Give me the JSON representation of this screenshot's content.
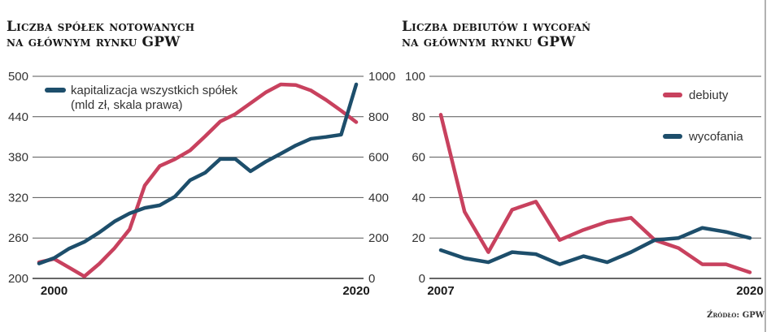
{
  "colors": {
    "red": "#c8415e",
    "blue": "#1d4e6b",
    "grid": "#555555"
  },
  "chart_data": [
    {
      "type": "line",
      "title_line1": "Liczba spółek notowanych",
      "title_line2": "na głównym rynku GPW",
      "x": [
        1999,
        2000,
        2001,
        2002,
        2003,
        2004,
        2005,
        2006,
        2007,
        2008,
        2009,
        2010,
        2011,
        2012,
        2013,
        2014,
        2015,
        2016,
        2017,
        2018,
        2019,
        2020
      ],
      "x_ticks": [
        "2000",
        "2020"
      ],
      "x_tick_values": [
        2000,
        2020
      ],
      "ylim_left": [
        200,
        500
      ],
      "yticks_left": [
        "200",
        "260",
        "320",
        "380",
        "440",
        "500"
      ],
      "ylim_right": [
        0,
        1000
      ],
      "yticks_right": [
        "0",
        "200",
        "400",
        "600",
        "800",
        "1000"
      ],
      "legend_line1": "kapitalizacja wszystkich spółek",
      "legend_line2": "(mld zł, skala prawa)",
      "legend_placement": "top-left",
      "series": [
        {
          "name": "liczba spółek",
          "axis": "left",
          "color": "red",
          "values": [
            224,
            229,
            216,
            203,
            222,
            245,
            273,
            338,
            367,
            377,
            390,
            411,
            433,
            444,
            460,
            476,
            488,
            487,
            479,
            465,
            449,
            432
          ]
        },
        {
          "name": "kapitalizacja wszystkich spółek (mld zł, skala prawa)",
          "axis": "right",
          "color": "blue",
          "values": [
            74,
            101,
            148,
            181,
            228,
            282,
            322,
            349,
            362,
            405,
            486,
            523,
            591,
            591,
            530,
            577,
            617,
            658,
            691,
            700,
            711,
            960
          ]
        }
      ]
    },
    {
      "type": "line",
      "title_line1": "Liczba debiutów i wycofań",
      "title_line2": "na głównym rynku GPW",
      "x": [
        2007,
        2008,
        2009,
        2010,
        2011,
        2012,
        2013,
        2014,
        2015,
        2016,
        2017,
        2018,
        2019,
        2020
      ],
      "x_ticks": [
        "2007",
        "2020"
      ],
      "x_tick_values": [
        2007,
        2020
      ],
      "ylim": [
        0,
        100
      ],
      "yticks": [
        "0",
        "20",
        "40",
        "60",
        "80",
        "100"
      ],
      "legend_placement": "top-right",
      "series": [
        {
          "name": "debiuty",
          "color": "red",
          "values": [
            81,
            33,
            13,
            34,
            38,
            19,
            24,
            28,
            30,
            19,
            15,
            7,
            7,
            3
          ]
        },
        {
          "name": "wycofania",
          "color": "blue",
          "values": [
            14,
            10,
            8,
            13,
            12,
            7,
            11,
            8,
            13,
            19,
            20,
            25,
            23,
            20
          ]
        }
      ]
    }
  ],
  "source": "Źródło: GPW"
}
